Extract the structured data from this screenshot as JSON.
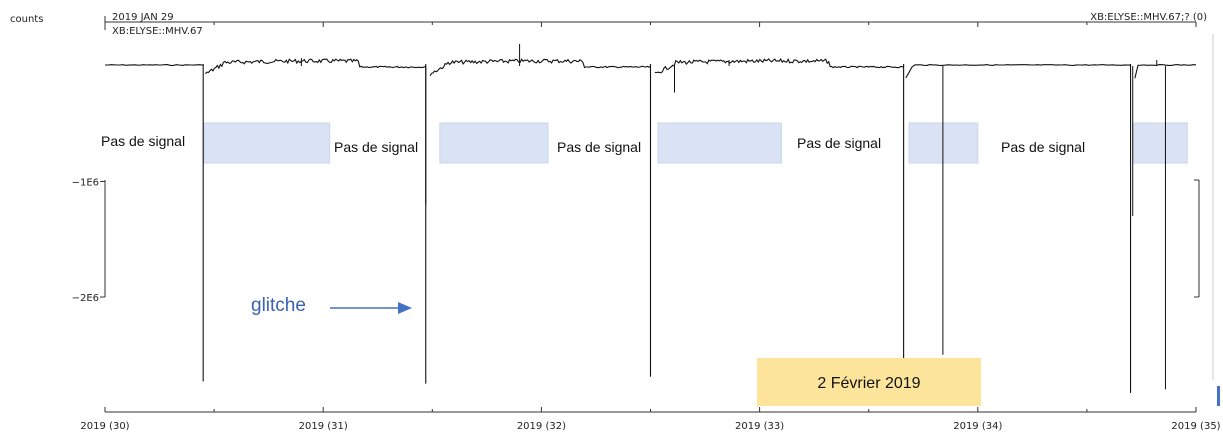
{
  "chart_data": {
    "type": "line",
    "ylabel": "counts",
    "header_date": "2019 JAN 29",
    "channel_left": "XB:ELYSE::MHV.67",
    "channel_right": "XB:ELYSE::MHV.67;? (0)",
    "x_tick_labels": [
      "2019 (30)",
      "2019 (31)",
      "2019 (32)",
      "2019 (33)",
      "2019 (34)",
      "2019 (35)"
    ],
    "x_ticks": [
      30,
      31,
      32,
      33,
      34,
      35
    ],
    "xlim": [
      30,
      35
    ],
    "y_tick_labels": [
      "-1E6",
      "-2E6"
    ],
    "y_ticks": [
      -1000000,
      -2000000
    ],
    "ylim": [
      -3000000,
      250000
    ],
    "baseline": 0,
    "segments": [
      {
        "x0": 30.0,
        "x1": 30.45,
        "drop_at": 30.45,
        "drop_min": -2730000,
        "noisy": false
      },
      {
        "x0": 30.46,
        "x1": 31.47,
        "drop_at": 31.47,
        "drop_min": -2750000,
        "noisy": true
      },
      {
        "x0": 31.49,
        "x1": 32.5,
        "drop_at": 32.5,
        "drop_min": -2690000,
        "noisy": true
      },
      {
        "x0": 32.52,
        "x1": 33.66,
        "drop_at": 33.66,
        "drop_min": -2570000,
        "noisy": true
      },
      {
        "x0": 33.67,
        "x1": 34.7,
        "drop_at": 34.7,
        "drop_min": -2830000,
        "noisy": false
      },
      {
        "x0": 34.72,
        "x1": 35.0,
        "drop_at": 35.0,
        "drop_min": 0,
        "noisy": false
      }
    ],
    "spikes": [
      {
        "x": 31.47,
        "min": -1200000
      },
      {
        "x": 32.61,
        "min": -230000
      },
      {
        "x": 33.84,
        "min": -2500000
      },
      {
        "x": 34.71,
        "min": -1300000
      },
      {
        "x": 34.86,
        "min": -2800000
      }
    ]
  },
  "annotations": {
    "gaps": [
      {
        "label": "Pas de signal",
        "x_start": 30.45,
        "x_end": 31.03
      },
      {
        "label": "Pas de signal",
        "x_start": 31.53,
        "x_end": 32.03
      },
      {
        "label": "Pas de signal",
        "x_start": 32.53,
        "x_end": 33.1
      },
      {
        "label": "Pas de signal",
        "x_start": 33.68,
        "x_end": 34.0
      },
      {
        "label": "Pas de signal",
        "x_start": 34.71,
        "x_end": 34.96
      }
    ],
    "glitch_label": "glitche",
    "date_box": "2 Février 2019"
  },
  "colors": {
    "trace": "#111111",
    "gap_fill": "#dae3f3",
    "gap_stroke": "#c9d6ec",
    "glitch_text": "#3a62b0",
    "arrow": "#4472c4",
    "date_box_fill": "#fde49b",
    "frame": "#333333"
  }
}
